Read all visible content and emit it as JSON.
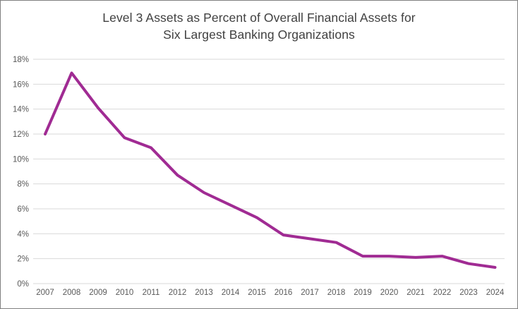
{
  "chart_data": {
    "type": "line",
    "title": "Level 3 Assets as Percent of Overall Financial Assets for Six Largest Banking Organizations",
    "title_lines": [
      "Level 3 Assets as Percent of Overall Financial Assets for",
      "Six Largest Banking Organizations"
    ],
    "x": [
      2007,
      2008,
      2009,
      2010,
      2011,
      2012,
      2013,
      2014,
      2015,
      2016,
      2017,
      2018,
      2019,
      2020,
      2021,
      2022,
      2023,
      2024
    ],
    "series": [
      {
        "name": "Level 3 assets as percent of overall financial assets",
        "values": [
          12.0,
          16.9,
          14.1,
          11.7,
          10.9,
          8.7,
          7.3,
          6.3,
          5.3,
          3.9,
          3.6,
          3.3,
          2.2,
          2.2,
          2.1,
          2.2,
          1.6,
          1.3
        ]
      }
    ],
    "xlabel": "",
    "ylabel": "",
    "ylim": [
      0,
      18
    ],
    "y_ticks": [
      0,
      2,
      4,
      6,
      8,
      10,
      12,
      14,
      16,
      18
    ],
    "y_tick_labels": [
      "0%",
      "2%",
      "4%",
      "6%",
      "8%",
      "10%",
      "12%",
      "14%",
      "16%",
      "18%"
    ],
    "grid": "horizontal",
    "legend_position": "none"
  },
  "colors": {
    "line": "#A02B93",
    "grid": "#D9D9D9",
    "tick_label": "#595959",
    "title": "#404040",
    "frame_border": "#808080"
  }
}
